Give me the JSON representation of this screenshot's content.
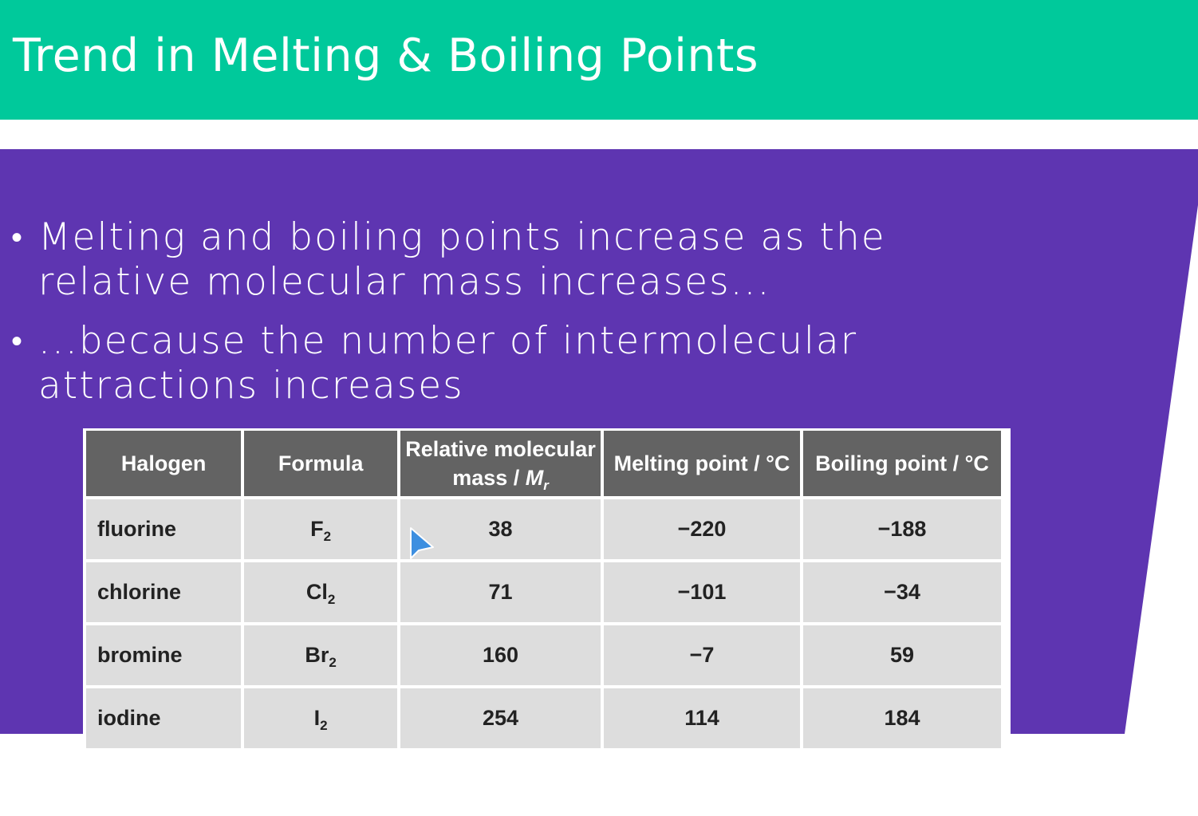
{
  "colors": {
    "title_bar": "#00c99b",
    "panel": "#5e35b1",
    "table_header": "#636363",
    "table_cell": "#dddddd",
    "cursor": "#3d8fe0"
  },
  "header": {
    "title": "Trend in Melting & Boiling Points"
  },
  "bullets": [
    {
      "text": "Melting and boiling points increase as the relative molecular mass increases..."
    },
    {
      "text": "...because the number of intermolecular attractions increases"
    }
  ],
  "table": {
    "headers": {
      "halogen": "Halogen",
      "formula": "Formula",
      "mass_line1": "Relative molecular",
      "mass_line2": "mass / ",
      "mass_symbol": "M",
      "mass_subscript": "r",
      "melting": "Melting point / °C",
      "boiling": "Boiling point / °C"
    },
    "rows": [
      {
        "name": "fluorine",
        "formula": "F",
        "formula_sub": "2",
        "mass": "38",
        "melting": "−220",
        "boiling": "−188"
      },
      {
        "name": "chlorine",
        "formula": "Cl",
        "formula_sub": "2",
        "mass": "71",
        "melting": "−101",
        "boiling": "−34"
      },
      {
        "name": "bromine",
        "formula": "Br",
        "formula_sub": "2",
        "mass": "160",
        "melting": "−7",
        "boiling": "59"
      },
      {
        "name": "iodine",
        "formula": "I",
        "formula_sub": "2",
        "mass": "254",
        "melting": "114",
        "boiling": "184"
      }
    ]
  },
  "icons": {
    "cursor": "mouse-pointer-icon"
  }
}
